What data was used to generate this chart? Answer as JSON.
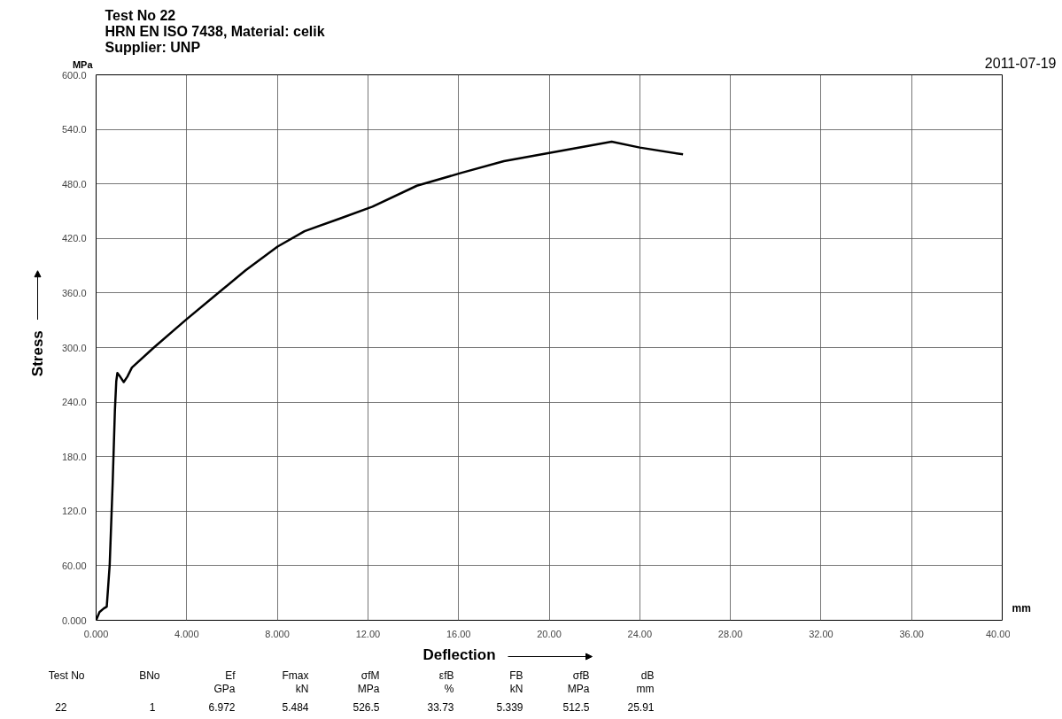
{
  "chart_data": {
    "type": "line",
    "title": "Test No  22",
    "subtitle": "HRN EN ISO 7438, Material: celik\nSupplier: UNP",
    "xlabel": "Deflection",
    "ylabel": "Stress",
    "annotations": [
      "2011-07-19",
      "MPa",
      "mm",
      "Test No",
      "BNo",
      "Ef",
      "Fmax",
      "σfM",
      "εfB",
      "FB",
      "σfB",
      "dB",
      "GPa",
      "kN",
      "MPa",
      "%",
      "kN",
      "MPa",
      "mm",
      "22",
      "1",
      "6.972",
      "5.484",
      "526.5",
      "33.73",
      "5.339",
      "512.5",
      "25.91"
    ],
    "series": [
      {
        "color": "#000000",
        "x": [
          0,
          0.15,
          0.34,
          0.47,
          0.6,
          0.73,
          0.83,
          0.89,
          0.94,
          1.06,
          1.22,
          1.38,
          1.58,
          2.55,
          3.99,
          5.29,
          6.6,
          8.01,
          9.2,
          10.77,
          12.2,
          14.16,
          16.1,
          18,
          20,
          22.76,
          24,
          25.91
        ],
        "values": [
          0,
          9,
          13,
          15,
          61,
          150,
          231,
          263,
          272,
          268,
          262,
          268,
          278,
          300,
          331,
          358,
          385,
          411,
          428,
          442,
          455,
          478,
          492,
          505,
          514,
          526.5,
          520,
          512.5
        ]
      }
    ],
    "xlim": [
      0,
      40
    ],
    "ylim": [
      0,
      600
    ],
    "xticks": [
      {
        "value": 0,
        "label": "0.000"
      },
      {
        "value": 4,
        "label": "4.000"
      },
      {
        "value": 8,
        "label": "8.000"
      },
      {
        "value": 12,
        "label": "12.00"
      },
      {
        "value": 16,
        "label": "16.00"
      },
      {
        "value": 20,
        "label": "20.00"
      },
      {
        "value": 24,
        "label": "24.00"
      },
      {
        "value": 28,
        "label": "28.00"
      },
      {
        "value": 32,
        "label": "32.00"
      },
      {
        "value": 36,
        "label": "36.00"
      },
      {
        "value": 40,
        "label": "40.00"
      }
    ],
    "yticks": [
      {
        "value": 0,
        "label": "0.000"
      },
      {
        "value": 60,
        "label": "60.00"
      },
      {
        "value": 120,
        "label": "120.0"
      },
      {
        "value": 180,
        "label": "180.0"
      },
      {
        "value": 240,
        "label": "240.0"
      },
      {
        "value": 300,
        "label": "300.0"
      },
      {
        "value": 360,
        "label": "360.0"
      },
      {
        "value": 420,
        "label": "420.0"
      },
      {
        "value": 480,
        "label": "480.0"
      },
      {
        "value": 540,
        "label": "540.0"
      },
      {
        "value": 600,
        "label": "600.0"
      }
    ],
    "grid": true,
    "marker": "none",
    "line_style": "solid"
  }
}
